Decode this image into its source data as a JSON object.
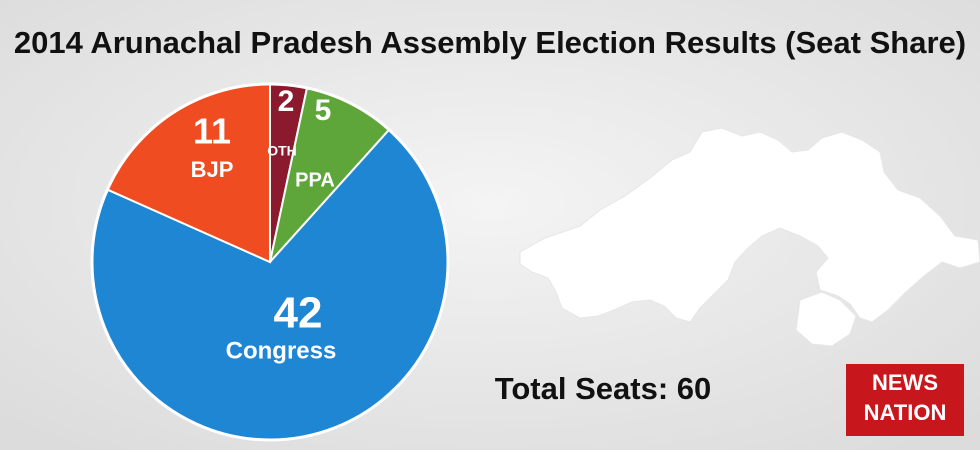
{
  "chart_data": {
    "type": "pie",
    "title": "2014 Arunachal Pradesh Assembly Election Results (Seat Share)",
    "categories": [
      "OTH",
      "PPA",
      "Congress",
      "BJP"
    ],
    "values": [
      2,
      5,
      42,
      11
    ],
    "colors": [
      "#8c1a2e",
      "#5ea63a",
      "#1f86d4",
      "#f04c22"
    ]
  },
  "total_text": "Total Seats: 60",
  "logo": {
    "line1": "NEWS",
    "line2": "NATION"
  }
}
